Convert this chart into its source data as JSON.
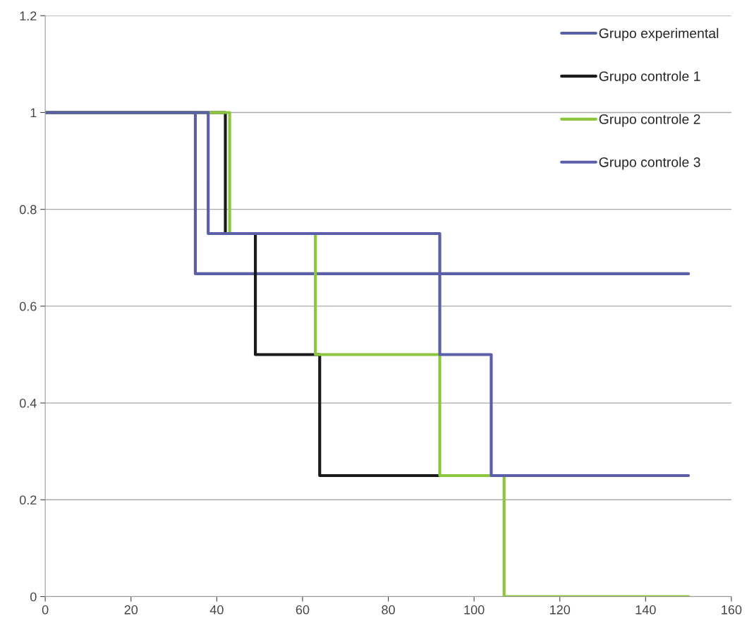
{
  "chart_data": {
    "type": "step",
    "xlim": [
      0,
      160
    ],
    "xticks": [
      0,
      20,
      40,
      60,
      80,
      100,
      120,
      140,
      160
    ],
    "ylim": [
      0,
      1.2
    ],
    "yticks": [
      0,
      0.2,
      0.4,
      0.6,
      0.8,
      1,
      1.2
    ],
    "grid": "y",
    "legend": "top right",
    "series": [
      {
        "name": "Grupo experimental",
        "color": "#5b5fa8",
        "x": [
          0,
          35,
          150
        ],
        "values": [
          1,
          0.667,
          0.667
        ]
      },
      {
        "name": "Grupo controle 1",
        "color": "#1a1a1a",
        "x": [
          0,
          42,
          49,
          64,
          92
        ],
        "values": [
          1,
          0.75,
          0.5,
          0.25,
          0.25
        ]
      },
      {
        "name": "Grupo controle 2",
        "color": "#8cc63f",
        "x": [
          0,
          43,
          63,
          92,
          107,
          150
        ],
        "values": [
          1,
          0.75,
          0.5,
          0.25,
          0,
          0
        ]
      },
      {
        "name": "Grupo controle 3",
        "color": "#5b5fa8",
        "x": [
          0,
          38,
          92,
          104,
          150
        ],
        "values": [
          1,
          0.75,
          0.5,
          0.25,
          0.25
        ]
      }
    ]
  }
}
